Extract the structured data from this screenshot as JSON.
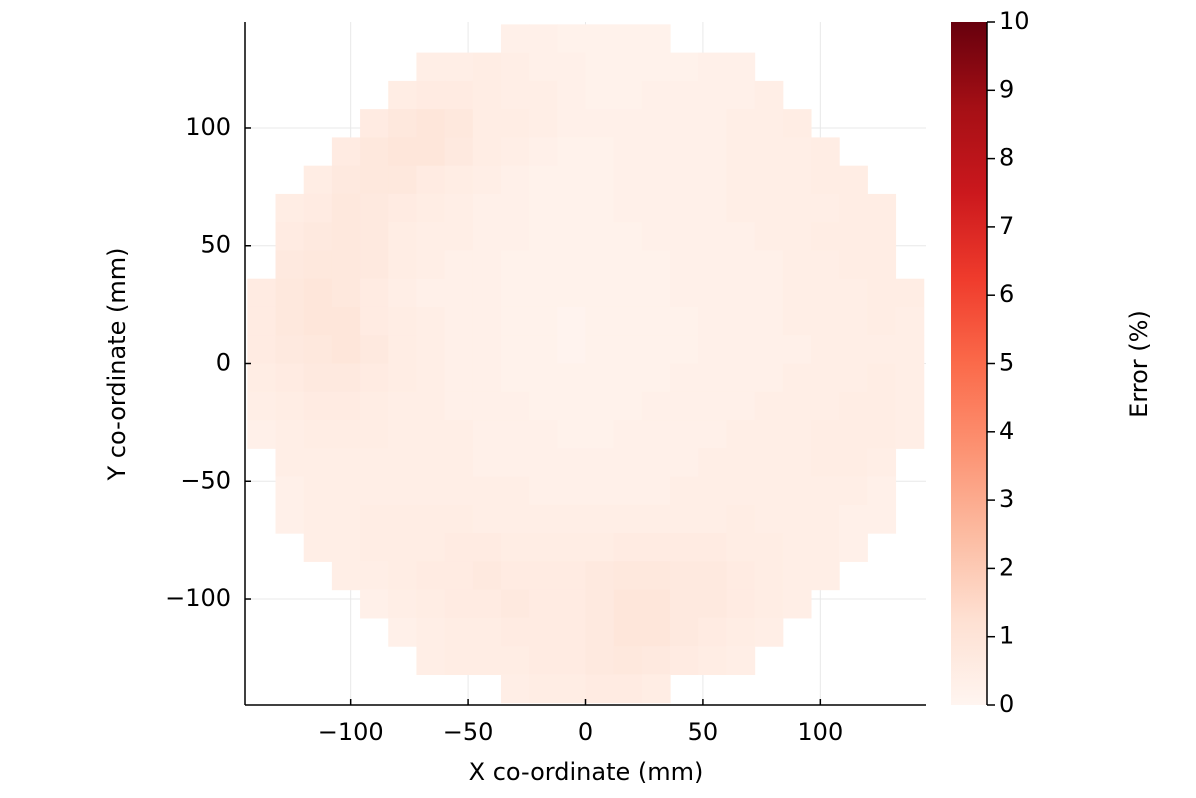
{
  "chart_data": {
    "type": "heatmap",
    "x_label": "X co-ordinate (mm)",
    "y_label": "Y co-ordinate (mm)",
    "colorbar_label": "Error (%)",
    "xlim": [
      -145,
      145
    ],
    "ylim": [
      -145,
      145
    ],
    "xticks": [
      {
        "value": -100,
        "label": "−100"
      },
      {
        "value": -50,
        "label": "−50"
      },
      0,
      50,
      100
    ],
    "yticks": [
      {
        "value": -100,
        "label": "−100"
      },
      {
        "value": -50,
        "label": "−50"
      },
      0,
      50,
      100
    ],
    "grid": true,
    "clim": [
      0,
      10
    ],
    "cticks": [
      0,
      1,
      2,
      3,
      4,
      5,
      6,
      7,
      8,
      9,
      10
    ],
    "colorscale": [
      "#fff5f0",
      "#fee0d2",
      "#fcbba1",
      "#fc9272",
      "#fb6a4a",
      "#ef3b2c",
      "#cb181d",
      "#a50f15",
      "#67000d"
    ],
    "x": [
      -138,
      -126,
      -114,
      -102,
      -90,
      -78,
      -66,
      -54,
      -42,
      -30,
      -18,
      -6,
      6,
      18,
      30,
      42,
      54,
      66,
      78,
      90,
      102,
      114,
      126,
      138
    ],
    "y": [
      138,
      126,
      114,
      102,
      90,
      78,
      66,
      54,
      42,
      30,
      18,
      6,
      -6,
      -18,
      -30,
      -42,
      -54,
      -66,
      -78,
      -90,
      -102,
      -114,
      -126,
      -138
    ],
    "z": [
      [
        null,
        null,
        null,
        null,
        null,
        null,
        null,
        null,
        null,
        0.3,
        0.3,
        0.2,
        0.2,
        0.2,
        0.2,
        null,
        null,
        null,
        null,
        null,
        null,
        null,
        null,
        null
      ],
      [
        null,
        null,
        null,
        null,
        null,
        null,
        0.4,
        0.4,
        0.5,
        0.4,
        0.3,
        0.3,
        0.2,
        0.2,
        0.2,
        0.2,
        0.3,
        0.3,
        null,
        null,
        null,
        null,
        null,
        null
      ],
      [
        null,
        null,
        null,
        null,
        null,
        0.5,
        0.6,
        0.6,
        0.5,
        0.4,
        0.4,
        0.3,
        0.2,
        0.2,
        0.3,
        0.3,
        0.3,
        0.3,
        0.4,
        null,
        null,
        null,
        null,
        null
      ],
      [
        null,
        null,
        null,
        null,
        0.6,
        0.8,
        0.9,
        0.8,
        0.5,
        0.5,
        0.4,
        0.3,
        0.3,
        0.3,
        0.3,
        0.3,
        0.3,
        0.4,
        0.4,
        0.5,
        null,
        null,
        null,
        null
      ],
      [
        null,
        null,
        null,
        0.6,
        0.8,
        0.9,
        0.9,
        0.7,
        0.5,
        0.4,
        0.3,
        0.2,
        0.2,
        0.3,
        0.3,
        0.3,
        0.3,
        0.4,
        0.4,
        0.4,
        0.5,
        null,
        null,
        null
      ],
      [
        null,
        null,
        0.5,
        0.7,
        0.8,
        0.8,
        0.6,
        0.5,
        0.4,
        0.3,
        0.2,
        0.2,
        0.2,
        0.3,
        0.3,
        0.3,
        0.3,
        0.4,
        0.4,
        0.4,
        0.5,
        0.5,
        null,
        null
      ],
      [
        null,
        0.5,
        0.6,
        0.8,
        0.7,
        0.6,
        0.5,
        0.4,
        0.3,
        0.3,
        0.2,
        0.2,
        0.2,
        0.3,
        0.3,
        0.3,
        0.3,
        0.4,
        0.4,
        0.4,
        0.4,
        0.5,
        0.5,
        null
      ],
      [
        null,
        0.6,
        0.7,
        0.8,
        0.7,
        0.5,
        0.4,
        0.4,
        0.3,
        0.3,
        0.2,
        0.2,
        0.2,
        0.2,
        0.3,
        0.3,
        0.3,
        0.3,
        0.4,
        0.4,
        0.5,
        0.5,
        0.5,
        null
      ],
      [
        null,
        0.7,
        0.8,
        0.8,
        0.7,
        0.5,
        0.4,
        0.3,
        0.3,
        0.2,
        0.2,
        0.2,
        0.2,
        0.2,
        0.2,
        0.3,
        0.3,
        0.3,
        0.3,
        0.4,
        0.4,
        0.5,
        0.5,
        null
      ],
      [
        0.6,
        0.8,
        0.9,
        0.8,
        0.6,
        0.4,
        0.3,
        0.3,
        0.3,
        0.2,
        0.2,
        0.2,
        0.2,
        0.2,
        0.2,
        0.3,
        0.3,
        0.3,
        0.3,
        0.4,
        0.4,
        0.4,
        0.5,
        0.5
      ],
      [
        0.6,
        0.8,
        0.9,
        0.9,
        0.6,
        0.5,
        0.4,
        0.3,
        0.3,
        0.2,
        0.2,
        0.1,
        0.2,
        0.2,
        0.2,
        0.2,
        0.3,
        0.3,
        0.3,
        0.4,
        0.4,
        0.4,
        0.5,
        0.4
      ],
      [
        0.6,
        0.7,
        0.8,
        0.9,
        0.7,
        0.5,
        0.4,
        0.3,
        0.3,
        0.2,
        0.2,
        0.1,
        0.2,
        0.2,
        0.2,
        0.2,
        0.3,
        0.3,
        0.3,
        0.3,
        0.4,
        0.4,
        0.4,
        0.4
      ],
      [
        0.5,
        0.6,
        0.7,
        0.7,
        0.6,
        0.5,
        0.4,
        0.3,
        0.3,
        0.2,
        0.2,
        0.2,
        0.2,
        0.2,
        0.2,
        0.3,
        0.3,
        0.3,
        0.3,
        0.4,
        0.4,
        0.4,
        0.5,
        0.4
      ],
      [
        0.4,
        0.5,
        0.6,
        0.6,
        0.5,
        0.4,
        0.4,
        0.3,
        0.3,
        0.3,
        0.2,
        0.2,
        0.2,
        0.2,
        0.3,
        0.3,
        0.3,
        0.3,
        0.4,
        0.4,
        0.4,
        0.5,
        0.5,
        0.4
      ],
      [
        0.3,
        0.4,
        0.5,
        0.5,
        0.5,
        0.4,
        0.4,
        0.4,
        0.3,
        0.3,
        0.3,
        0.2,
        0.2,
        0.3,
        0.3,
        0.3,
        0.3,
        0.4,
        0.4,
        0.4,
        0.5,
        0.5,
        0.5,
        0.4
      ],
      [
        null,
        0.4,
        0.4,
        0.4,
        0.4,
        0.4,
        0.4,
        0.4,
        0.3,
        0.3,
        0.3,
        0.3,
        0.3,
        0.3,
        0.3,
        0.3,
        0.4,
        0.4,
        0.4,
        0.4,
        0.5,
        0.5,
        0.4,
        null
      ],
      [
        null,
        0.3,
        0.4,
        0.4,
        0.4,
        0.4,
        0.4,
        0.4,
        0.4,
        0.4,
        0.3,
        0.3,
        0.3,
        0.3,
        0.3,
        0.4,
        0.4,
        0.4,
        0.4,
        0.4,
        0.4,
        0.4,
        0.3,
        null
      ],
      [
        null,
        0.3,
        0.4,
        0.4,
        0.5,
        0.5,
        0.5,
        0.5,
        0.4,
        0.4,
        0.4,
        0.4,
        0.4,
        0.4,
        0.4,
        0.4,
        0.4,
        0.5,
        0.4,
        0.4,
        0.4,
        0.3,
        0.3,
        null
      ],
      [
        null,
        null,
        0.4,
        0.4,
        0.5,
        0.5,
        0.5,
        0.6,
        0.6,
        0.5,
        0.5,
        0.5,
        0.5,
        0.6,
        0.6,
        0.6,
        0.6,
        0.5,
        0.5,
        0.4,
        0.4,
        0.3,
        null,
        null
      ],
      [
        null,
        null,
        null,
        0.4,
        0.4,
        0.5,
        0.6,
        0.6,
        0.7,
        0.6,
        0.6,
        0.6,
        0.7,
        0.8,
        0.8,
        0.7,
        0.7,
        0.6,
        0.5,
        0.4,
        0.4,
        null,
        null,
        null
      ],
      [
        null,
        null,
        null,
        null,
        0.3,
        0.4,
        0.5,
        0.6,
        0.6,
        0.7,
        0.6,
        0.6,
        0.7,
        0.9,
        0.9,
        0.7,
        0.7,
        0.6,
        0.5,
        0.4,
        null,
        null,
        null,
        null
      ],
      [
        null,
        null,
        null,
        null,
        null,
        0.3,
        0.4,
        0.5,
        0.5,
        0.6,
        0.6,
        0.6,
        0.7,
        0.9,
        0.9,
        0.7,
        0.6,
        0.5,
        0.4,
        null,
        null,
        null,
        null,
        null
      ],
      [
        null,
        null,
        null,
        null,
        null,
        null,
        0.4,
        0.5,
        0.5,
        0.5,
        0.6,
        0.6,
        0.7,
        0.8,
        0.7,
        0.6,
        0.5,
        0.4,
        null,
        null,
        null,
        null,
        null,
        null
      ],
      [
        null,
        null,
        null,
        null,
        null,
        null,
        null,
        null,
        null,
        0.4,
        0.5,
        0.5,
        0.6,
        0.6,
        0.5,
        null,
        null,
        null,
        null,
        null,
        null,
        null,
        null,
        null
      ]
    ]
  }
}
